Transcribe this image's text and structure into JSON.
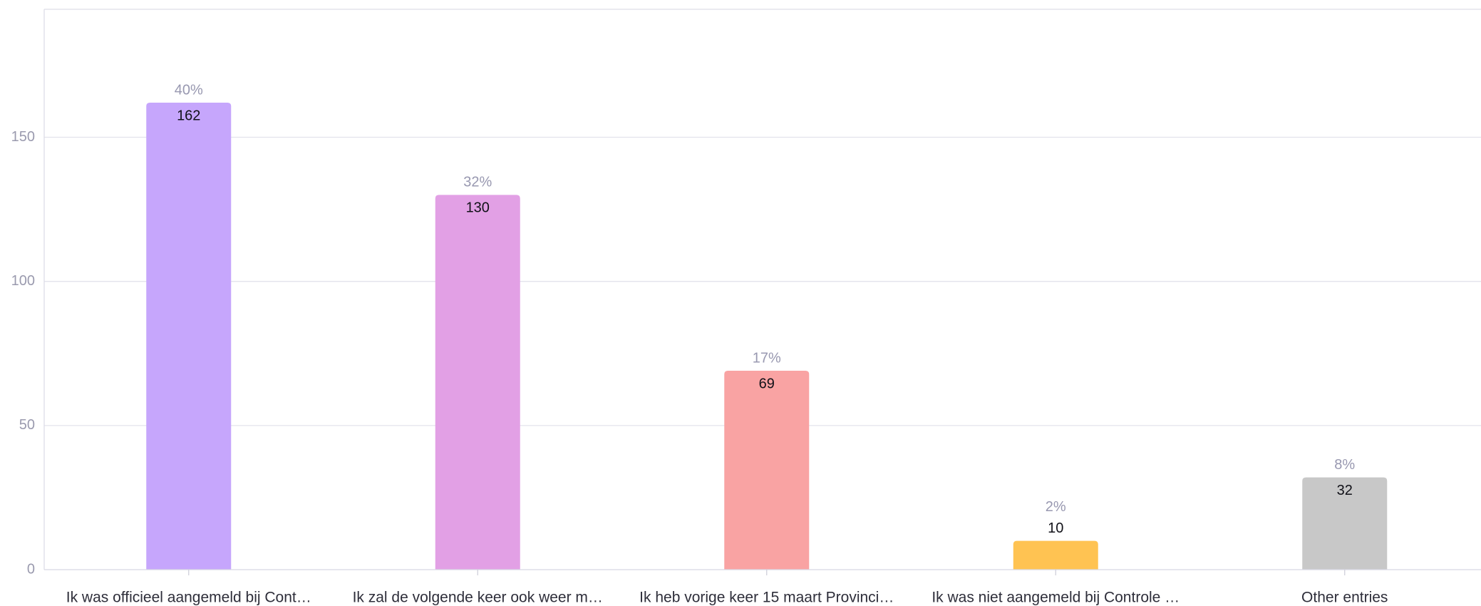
{
  "chart_data": {
    "type": "bar",
    "categories": [
      "Ik was officieel aangemeld bij Cont…",
      "Ik zal de volgende keer ook weer m…",
      "Ik heb vorige keer 15 maart Provinci…",
      "Ik was niet aangemeld bij Controle …",
      "Other entries"
    ],
    "values": [
      162,
      130,
      69,
      10,
      32
    ],
    "percent_labels": [
      "40%",
      "32%",
      "17%",
      "2%",
      "8%"
    ],
    "colors": [
      "#C6A6FC",
      "#E2A0E5",
      "#F9A3A3",
      "#FFC352",
      "#C8C8C8"
    ],
    "yticks": [
      0,
      50,
      100,
      150
    ],
    "ylim": [
      0,
      194.4
    ],
    "grid": true
  }
}
